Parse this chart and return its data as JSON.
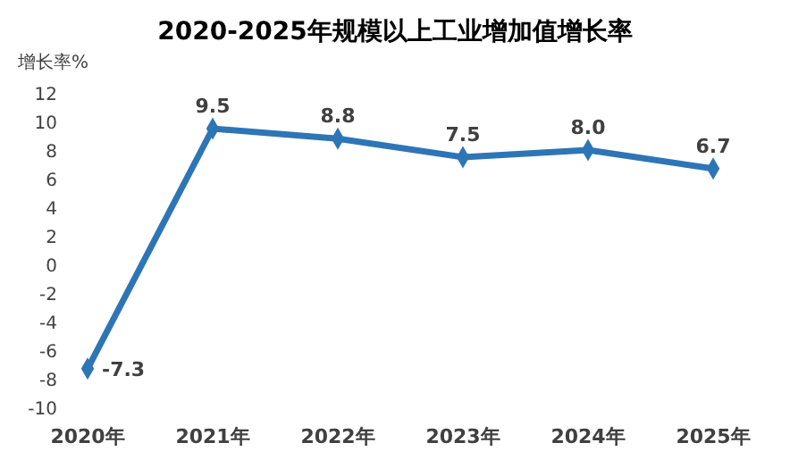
{
  "chart_data": {
    "type": "line",
    "title": "2020-2025年规模以上工业增加值增长率",
    "ylabel": "增长率%",
    "categories": [
      "2020年",
      "2021年",
      "2022年",
      "2023年",
      "2024年",
      "2025年"
    ],
    "series": [
      {
        "color": "#2e75b6",
        "values": [
          -7.3,
          9.5,
          8.8,
          7.5,
          8.0,
          6.7
        ],
        "value_labels": [
          "-7.3",
          "9.5",
          "8.8",
          "7.5",
          "8.0",
          "6.7"
        ]
      }
    ],
    "ylim": [
      -10,
      12
    ],
    "yticks": [
      -10,
      -8,
      -6,
      -4,
      -2,
      0,
      2,
      4,
      6,
      8,
      10,
      12
    ],
    "marker": "diamond",
    "line_style": "solid",
    "grid": false
  }
}
